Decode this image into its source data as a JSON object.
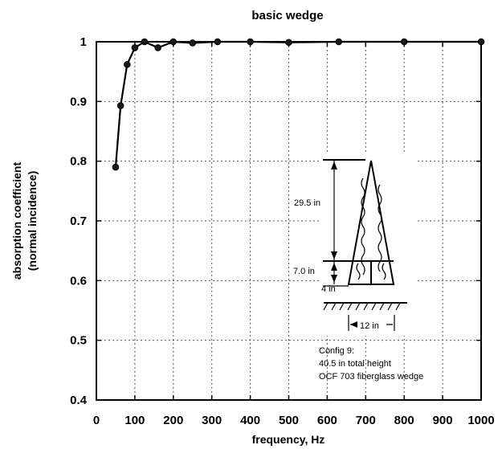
{
  "chart_data": {
    "type": "line",
    "title": "basic wedge",
    "xlabel": "frequency, Hz",
    "ylabel_line1": "absorption coefficient",
    "ylabel_line2": "(normal incidence)",
    "xlim": [
      0,
      1000
    ],
    "ylim": [
      0.4,
      1.0
    ],
    "xticks": [
      0,
      100,
      200,
      300,
      400,
      500,
      600,
      700,
      800,
      900,
      1000
    ],
    "yticks": [
      0.4,
      0.5,
      0.6,
      0.7,
      0.8,
      0.9,
      1.0
    ],
    "ytick_labels": [
      "0.4",
      "0.5",
      "0.6",
      "0.7",
      "0.8",
      "0.9",
      "1"
    ],
    "grid": true,
    "series": [
      {
        "x": [
          50,
          63,
          80,
          100,
          125,
          160,
          200,
          250,
          315,
          400,
          500,
          630,
          800,
          1000
        ],
        "y": [
          0.79,
          0.893,
          0.962,
          0.99,
          1.0,
          0.99,
          1.0,
          0.998,
          1.0,
          1.0,
          0.999,
          1.0,
          1.0,
          1.0
        ]
      }
    ],
    "annotations": {
      "dim_upper": "29.5 in",
      "dim_lower": "7.0 in",
      "dim_base": "4 in",
      "dim_width": "12 in",
      "config_line1": "Config 9:",
      "config_line2": "40.5 in total height",
      "config_line3": "OCF 703 fiberglass wedge"
    }
  }
}
